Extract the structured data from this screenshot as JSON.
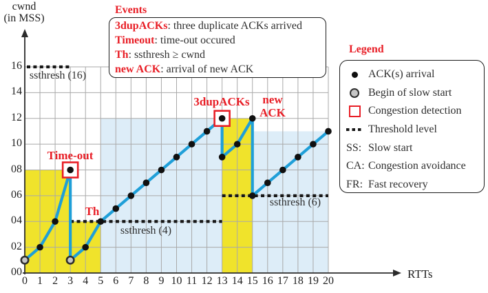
{
  "figure": {
    "axis_y_title_lines": [
      "cwnd",
      "(in MSS)"
    ],
    "axis_x_title": "RTTs"
  },
  "events_box": {
    "title": "Events",
    "items": [
      {
        "term": "3dupACKs",
        "desc": ": three duplicate ACKs arrived"
      },
      {
        "term": "Timeout",
        "desc": ": time-out occured"
      },
      {
        "term": "Th",
        "desc": ": ssthresh ≥ cwnd"
      },
      {
        "term": "new ACK",
        "desc": ": arrival of new ACK"
      }
    ]
  },
  "legend": {
    "title": "Legend",
    "items": [
      {
        "icon": "ack-dot",
        "label": "ACK(s) arrival"
      },
      {
        "icon": "slow-start-circle",
        "label": "Begin of slow start"
      },
      {
        "icon": "congestion-square",
        "label": "Congestion detection"
      },
      {
        "icon": "threshold-dotted",
        "label": "Threshold level"
      }
    ],
    "abbreviations": [
      {
        "abbr": "SS:",
        "label": "Slow start"
      },
      {
        "abbr": "CA:",
        "label": "Congestion avoidance"
      },
      {
        "abbr": "FR:",
        "label": "Fast recovery"
      }
    ]
  },
  "colors": {
    "curve_blue": "#1f9fd8",
    "slow_start_yellow": "#f0e32b",
    "congestion_avoidance_blue": "#ddedf8",
    "event_red": "#e81e26",
    "grid_gray": "#a9a9a9",
    "threshold_black": "#171717",
    "axis_dark": "#2b2b2b"
  },
  "chart_data": {
    "type": "line",
    "xlabel": "RTTs",
    "ylabel": "cwnd (in MSS)",
    "xlim": [
      0,
      20
    ],
    "ylim": [
      0,
      16
    ],
    "grid": true,
    "x_tick_labels": [
      "0",
      "1",
      "2",
      "3",
      "4",
      "5",
      "6",
      "7",
      "8",
      "9",
      "10",
      "11",
      "12",
      "13",
      "14",
      "15",
      "16",
      "17",
      "18",
      "19",
      "20"
    ],
    "y_tick_values": [
      0,
      2,
      4,
      6,
      8,
      10,
      12,
      14,
      16
    ],
    "y_tick_labels": [
      "00",
      "02",
      "04",
      "06",
      "08",
      "10",
      "12",
      "14",
      "16"
    ],
    "series": {
      "name": "cwnd",
      "path": [
        [
          0,
          1
        ],
        [
          1,
          2
        ],
        [
          2,
          4
        ],
        [
          3,
          8
        ],
        [
          3,
          1
        ],
        [
          4,
          2
        ],
        [
          5,
          4
        ],
        [
          13,
          12
        ],
        [
          13,
          9
        ],
        [
          14,
          10
        ],
        [
          15,
          12
        ],
        [
          15,
          6
        ],
        [
          16,
          7
        ],
        [
          17,
          8
        ],
        [
          18,
          9
        ],
        [
          19,
          10
        ],
        [
          20,
          11
        ]
      ],
      "ack_points": [
        [
          1,
          2
        ],
        [
          2,
          4
        ],
        [
          3,
          8
        ],
        [
          4,
          2
        ],
        [
          5,
          4
        ],
        [
          6,
          5
        ],
        [
          7,
          6
        ],
        [
          8,
          7
        ],
        [
          9,
          8
        ],
        [
          10,
          9
        ],
        [
          11,
          10
        ],
        [
          12,
          11
        ],
        [
          13,
          12
        ],
        [
          13,
          9
        ],
        [
          14,
          10
        ],
        [
          15,
          12
        ],
        [
          15,
          6
        ],
        [
          16,
          7
        ],
        [
          17,
          8
        ],
        [
          18,
          9
        ],
        [
          19,
          10
        ],
        [
          20,
          11
        ]
      ],
      "slow_start_points": [
        [
          0,
          1
        ],
        [
          3,
          1
        ]
      ],
      "congestion_points": [
        [
          3,
          8
        ],
        [
          13,
          12
        ]
      ]
    },
    "thresholds": [
      {
        "y": 16,
        "x1": 0,
        "x2": 3,
        "label": "ssthresh (16)"
      },
      {
        "y": 4,
        "x1": 3,
        "x2": 13,
        "label": "ssthresh (4)"
      },
      {
        "y": 6,
        "x1": 13,
        "x2": 20,
        "label": "ssthresh (6)"
      }
    ],
    "regions": [
      {
        "phase": "SS",
        "x1": 0,
        "x2": 3,
        "y1": 0,
        "y2": 8,
        "color": "#f0e32b"
      },
      {
        "phase": "SS",
        "x1": 3,
        "x2": 5,
        "y1": 0,
        "y2": 4,
        "color": "#f0e32b"
      },
      {
        "phase": "CA",
        "x1": 5,
        "x2": 13,
        "y1": 0,
        "y2": 12,
        "color": "#ddedf8"
      },
      {
        "phase": "FR",
        "x1": 13,
        "x2": 15,
        "y1": 0,
        "y2": 12,
        "color": "#f0e32b"
      },
      {
        "phase": "CA",
        "x1": 15,
        "x2": 20,
        "y1": 0,
        "y2": 11,
        "color": "#ddedf8"
      }
    ],
    "annotations": {
      "timeout": {
        "text": "Time-out",
        "at": [
          3,
          8
        ]
      },
      "th": {
        "text": "Th",
        "at": [
          5,
          4
        ]
      },
      "dupacks": {
        "text": "3dupACKs",
        "at": [
          13,
          12
        ]
      },
      "new_ack": {
        "text": "new ACK",
        "at": [
          15,
          12
        ]
      }
    }
  }
}
